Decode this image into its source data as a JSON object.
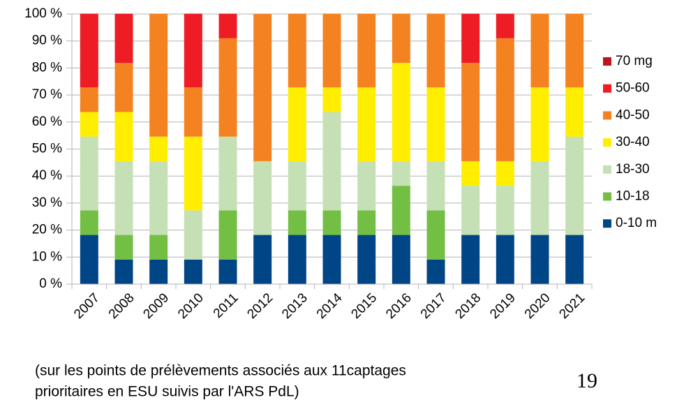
{
  "chart_data": {
    "type": "stacked_bar",
    "categories": [
      "2007",
      "2008",
      "2009",
      "2010",
      "2011",
      "2012",
      "2013",
      "2014",
      "2015",
      "2016",
      "2017",
      "2018",
      "2019",
      "2020",
      "2021"
    ],
    "series": [
      {
        "name": "0-10 m",
        "color": "#004586",
        "values": [
          18.2,
          9.1,
          9.1,
          9.1,
          9.1,
          18.2,
          18.2,
          18.2,
          18.2,
          18.2,
          9.1,
          18.2,
          18.2,
          18.2,
          18.2
        ]
      },
      {
        "name": "10-18",
        "color": "#72bf44",
        "values": [
          9.1,
          9.1,
          9.1,
          0,
          18.2,
          0,
          9.1,
          9.1,
          9.1,
          18.2,
          18.2,
          0,
          0,
          0,
          0
        ]
      },
      {
        "name": "18-30",
        "color": "#c5e0b4",
        "values": [
          27.3,
          27.3,
          27.3,
          18.2,
          27.3,
          27.3,
          18.2,
          36.4,
          18.2,
          9.1,
          18.2,
          18.2,
          18.2,
          27.3,
          36.4
        ]
      },
      {
        "name": "30-40",
        "color": "#ffee00",
        "values": [
          9.1,
          18.2,
          9.1,
          27.3,
          0,
          0,
          27.3,
          9.1,
          27.3,
          36.4,
          27.3,
          9.1,
          9.1,
          27.3,
          18.2
        ]
      },
      {
        "name": "40-50",
        "color": "#f58220",
        "values": [
          9.1,
          18.2,
          45.5,
          18.2,
          36.4,
          54.5,
          27.3,
          27.3,
          27.3,
          18.2,
          27.3,
          36.4,
          45.5,
          27.3,
          27.3
        ]
      },
      {
        "name": "50-60",
        "color": "#ee1c25",
        "values": [
          27.3,
          18.2,
          0,
          27.3,
          9.1,
          0,
          0,
          0,
          0,
          0,
          0,
          18.2,
          9.1,
          0,
          0
        ]
      },
      {
        "name": "70 mg",
        "color": "#c0141c",
        "values": [
          0,
          0,
          0,
          0,
          0,
          0,
          0,
          0,
          0,
          0,
          0,
          0,
          0,
          0,
          0
        ]
      }
    ],
    "ylim": [
      0,
      100
    ],
    "yticks": [
      {
        "value": 0,
        "label": "0 %"
      },
      {
        "value": 10,
        "label": "10 %"
      },
      {
        "value": 20,
        "label": "20 %"
      },
      {
        "value": 30,
        "label": "30 %"
      },
      {
        "value": 40,
        "label": "40 %"
      },
      {
        "value": 50,
        "label": "50 %"
      },
      {
        "value": 60,
        "label": "60 %"
      },
      {
        "value": 70,
        "label": "70 %"
      },
      {
        "value": 80,
        "label": "80 %"
      },
      {
        "value": 90,
        "label": "90 %"
      },
      {
        "value": 100,
        "label": "100 %"
      }
    ],
    "grid": true,
    "legend": "right"
  },
  "caption": [
    "(sur les points de prélèvements associés aux 11captages",
    "prioritaires en ESU suivis par l'ARS PdL)"
  ],
  "page_number": "19"
}
